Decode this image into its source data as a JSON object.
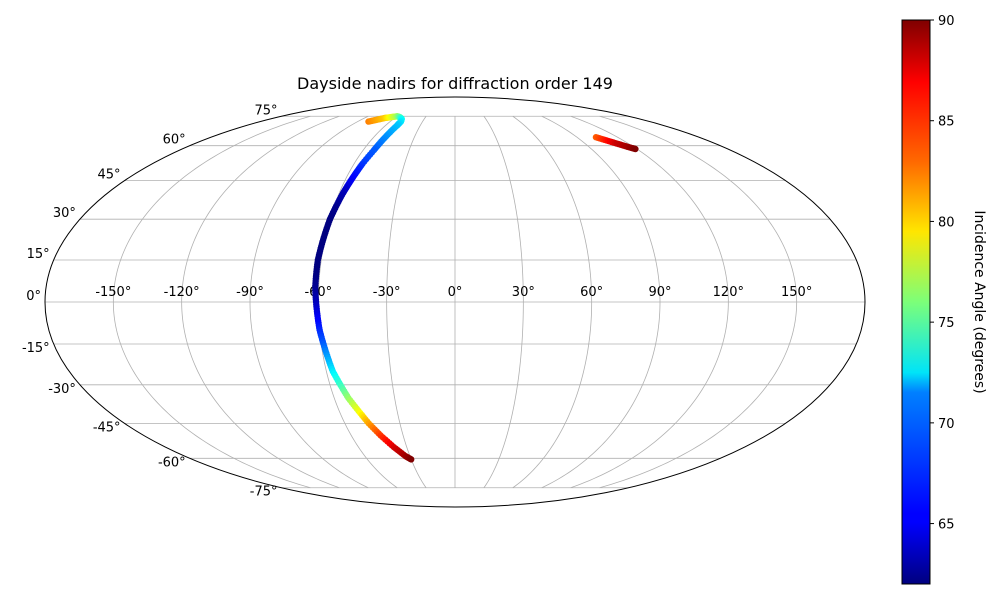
{
  "chart_data": {
    "type": "scatter",
    "projection": "mollweide",
    "title": "Dayside nadirs for diffraction order 149",
    "grid": true,
    "x_tick_labels": [
      "-150°",
      "-120°",
      "-90°",
      "-60°",
      "-30°",
      "0°",
      "30°",
      "60°",
      "90°",
      "120°",
      "150°"
    ],
    "y_tick_labels": [
      "-75°",
      "-60°",
      "-45°",
      "-30°",
      "-15°",
      "0°",
      "15°",
      "30°",
      "45°",
      "60°",
      "75°"
    ],
    "colorbar": {
      "label": "Incidence Angle (degrees)",
      "colormap": "jet",
      "range": [
        62,
        90
      ],
      "tick_labels": [
        "65",
        "70",
        "75",
        "80",
        "85",
        "90"
      ]
    },
    "series": [
      {
        "points": [
          {
            "lon": -80,
            "lat": 72,
            "inc": 83
          },
          {
            "lon": -75,
            "lat": 73,
            "inc": 82
          },
          {
            "lon": -70,
            "lat": 74,
            "inc": 81
          },
          {
            "lon": -65,
            "lat": 74.5,
            "inc": 79
          },
          {
            "lon": -60,
            "lat": 75,
            "inc": 77
          },
          {
            "lon": -56,
            "lat": 74.5,
            "inc": 75
          },
          {
            "lon": -52,
            "lat": 73.5,
            "inc": 73
          },
          {
            "lon": -50,
            "lat": 72,
            "inc": 72
          },
          {
            "lon": -50,
            "lat": 70,
            "inc": 71
          },
          {
            "lon": -51,
            "lat": 66,
            "inc": 70
          },
          {
            "lon": -52,
            "lat": 62,
            "inc": 69
          },
          {
            "lon": -53,
            "lat": 58,
            "inc": 68
          },
          {
            "lon": -55,
            "lat": 52,
            "inc": 67
          },
          {
            "lon": -56,
            "lat": 48,
            "inc": 66
          },
          {
            "lon": -57,
            "lat": 44,
            "inc": 65
          },
          {
            "lon": -58,
            "lat": 40,
            "inc": 63.5
          },
          {
            "lon": -59,
            "lat": 35,
            "inc": 62.5
          },
          {
            "lon": -60,
            "lat": 30,
            "inc": 62
          },
          {
            "lon": -60.5,
            "lat": 25,
            "inc": 62
          },
          {
            "lon": -61,
            "lat": 20,
            "inc": 62
          },
          {
            "lon": -61.5,
            "lat": 15,
            "inc": 62
          },
          {
            "lon": -61.5,
            "lat": 10,
            "inc": 62
          },
          {
            "lon": -61.5,
            "lat": 5,
            "inc": 62.5
          },
          {
            "lon": -61,
            "lat": 0,
            "inc": 63.5
          },
          {
            "lon": -60.5,
            "lat": -5,
            "inc": 65
          },
          {
            "lon": -60,
            "lat": -10,
            "inc": 66.5
          },
          {
            "lon": -59,
            "lat": -15,
            "inc": 68
          },
          {
            "lon": -58,
            "lat": -20,
            "inc": 70
          },
          {
            "lon": -57,
            "lat": -25,
            "inc": 72
          },
          {
            "lon": -55,
            "lat": -30,
            "inc": 74
          },
          {
            "lon": -53,
            "lat": -35,
            "inc": 76.5
          },
          {
            "lon": -50,
            "lat": -40,
            "inc": 79
          },
          {
            "lon": -47,
            "lat": -45,
            "inc": 82
          },
          {
            "lon": -43,
            "lat": -50,
            "inc": 85
          },
          {
            "lon": -38,
            "lat": -55,
            "inc": 87.5
          },
          {
            "lon": -33,
            "lat": -59,
            "inc": 89
          },
          {
            "lon": -30,
            "lat": -60.5,
            "inc": 90
          }
        ]
      },
      {
        "points": [
          {
            "lon": 104,
            "lat": 64,
            "inc": 84
          },
          {
            "lon": 108,
            "lat": 62.5,
            "inc": 86
          },
          {
            "lon": 112,
            "lat": 61,
            "inc": 88
          },
          {
            "lon": 116,
            "lat": 59.5,
            "inc": 89
          },
          {
            "lon": 119,
            "lat": 58.5,
            "inc": 90
          }
        ]
      }
    ]
  }
}
